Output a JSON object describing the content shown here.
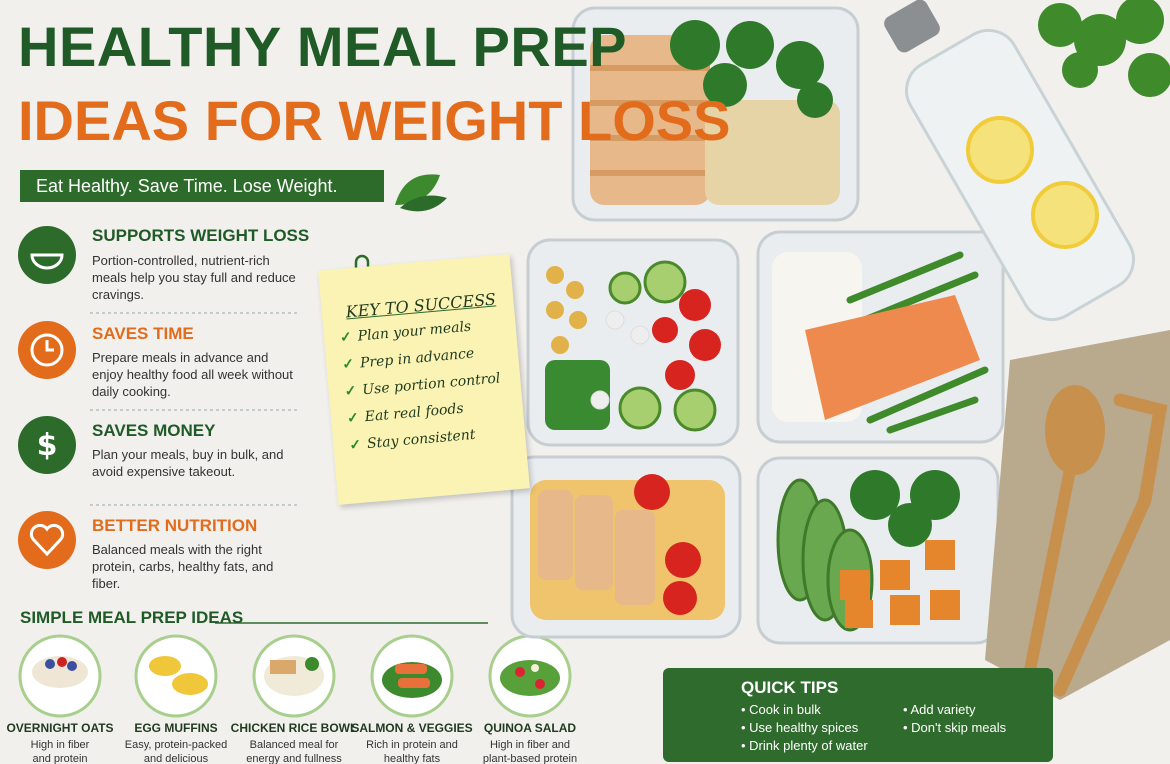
{
  "header": {
    "title_line1": "HEALTHY MEAL PREP",
    "title_line2": "IDEAS FOR WEIGHT LOSS",
    "tagline": "Eat Healthy. Save Time. Lose Weight."
  },
  "benefits": [
    {
      "title": "SUPPORTS WEIGHT LOSS",
      "text": "Portion-controlled, nutrient-rich meals help you stay full and reduce cravings."
    },
    {
      "title": "SAVES TIME",
      "text": "Prepare meals in advance and enjoy healthy food all week without daily cooking."
    },
    {
      "title": "SAVES MONEY",
      "text": "Plan your meals, buy in bulk, and avoid expensive takeout."
    },
    {
      "title": "BETTER NUTRITION",
      "text": "Balanced meals with the right protein, carbs, healthy fats, and fiber."
    }
  ],
  "key_to_success": {
    "title": "KEY TO SUCCESS",
    "items": [
      "Plan your meals",
      "Prep in advance",
      "Use portion control",
      "Eat real foods",
      "Stay consistent"
    ]
  },
  "meal_ideas": {
    "title": "SIMPLE MEAL PREP IDEAS",
    "items": [
      {
        "name": "OVERNIGHT OATS",
        "description": "High in fiber and protein"
      },
      {
        "name": "EGG MUFFINS",
        "description": "Easy, protein-packed and delicious"
      },
      {
        "name": "CHICKEN RICE BOWL",
        "description": "Balanced meal for energy and fullness"
      },
      {
        "name": "SALMON & VEGGIES",
        "description": "Rich in protein and healthy fats"
      },
      {
        "name": "QUINOA SALAD",
        "description": "High in fiber and plant-based protein"
      }
    ]
  },
  "quick_tips": {
    "title": "QUICK TIPS",
    "items": [
      "Cook in bulk",
      "Use healthy spices",
      "Drink plenty of water",
      "Add variety",
      "Don't skip meals"
    ]
  }
}
